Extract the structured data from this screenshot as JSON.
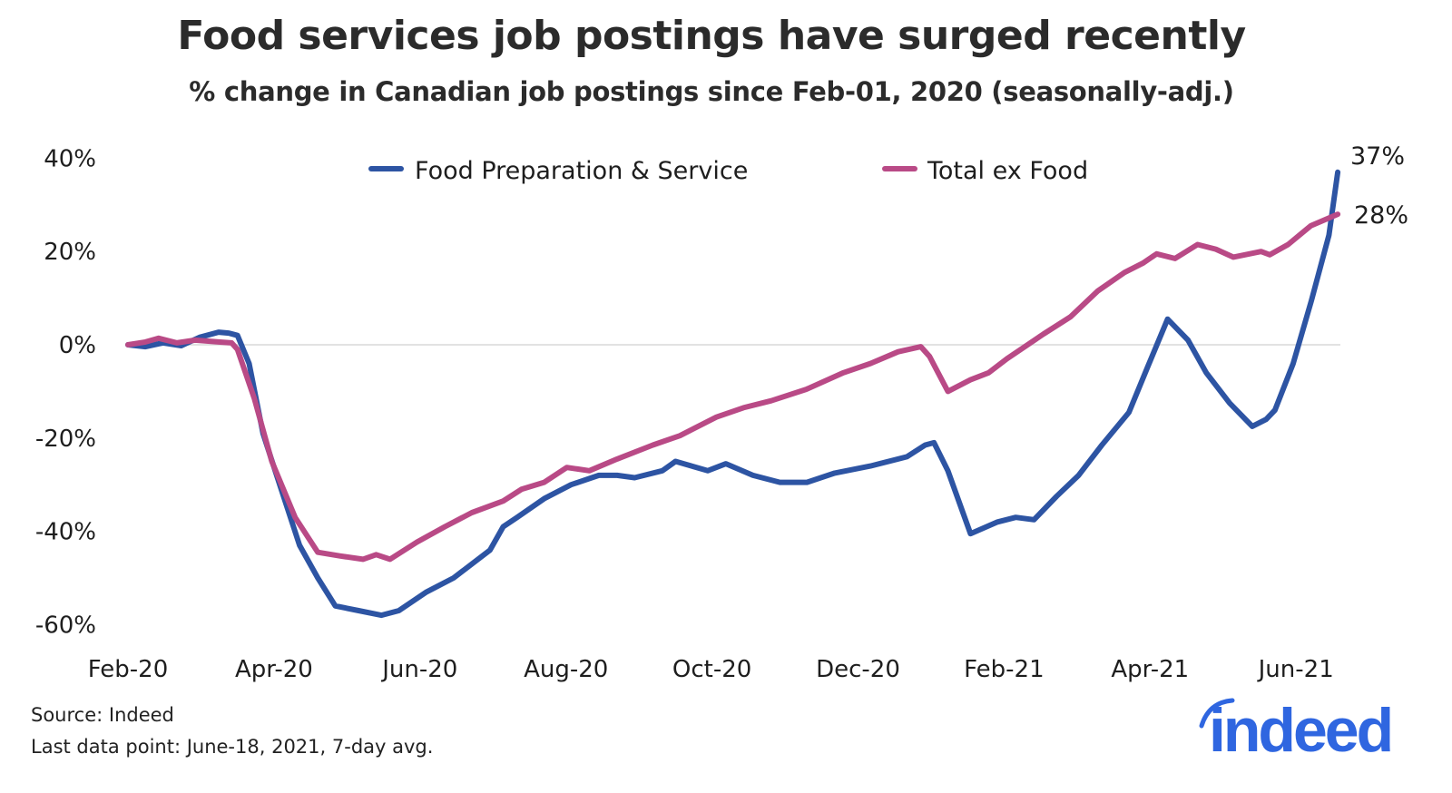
{
  "header": {
    "title": "Food services job postings have surged recently",
    "subtitle": "% change in Canadian job postings since Feb-01, 2020 (seasonally-adj.)"
  },
  "footer": {
    "source": "Source: Indeed",
    "last_point": "Last data point: June-18, 2021, 7-day avg."
  },
  "logo": {
    "text": "indeed",
    "color": "#2f66e0"
  },
  "colors": {
    "food": "#2d54a3",
    "total": "#b94a86",
    "zero_line": "#d9d9d9"
  },
  "chart_data": {
    "type": "line",
    "title": "Food services job postings have surged recently",
    "subtitle": "% change in Canadian job postings since Feb-01, 2020 (seasonally-adj.)",
    "xlabel": "",
    "ylabel": "",
    "x_unit": "months since Feb-01, 2020",
    "xlim": [
      0,
      16.6
    ],
    "ylim": [
      -60,
      40
    ],
    "y_ticks": [
      40,
      20,
      0,
      -20,
      -40,
      -60
    ],
    "y_tick_labels": [
      "40%",
      "20%",
      "0%",
      "-20%",
      "-40%",
      "-60%"
    ],
    "x_ticks": [
      0,
      2,
      4,
      6,
      8,
      10,
      12,
      14,
      16
    ],
    "x_tick_labels": [
      "Feb-20",
      "Apr-20",
      "Jun-20",
      "Aug-20",
      "Oct-20",
      "Dec-20",
      "Feb-21",
      "Apr-21",
      "Jun-21"
    ],
    "grid": "zero line only",
    "legend": {
      "position": "top-center"
    },
    "end_labels": [
      {
        "series": "Food Preparation & Service",
        "text": "37%"
      },
      {
        "series": "Total ex Food",
        "text": "28%"
      }
    ],
    "series": [
      {
        "name": "Food Preparation & Service",
        "color": "#2d54a3",
        "x": [
          0,
          0.24,
          0.48,
          0.73,
          0.98,
          1.24,
          1.38,
          1.5,
          1.66,
          1.85,
          2.1,
          2.35,
          2.6,
          2.84,
          3.16,
          3.47,
          3.71,
          4.09,
          4.46,
          4.96,
          5.14,
          5.33,
          5.7,
          6.07,
          6.45,
          6.7,
          6.94,
          7.32,
          7.5,
          7.94,
          8.19,
          8.56,
          8.93,
          9.3,
          9.68,
          10.17,
          10.67,
          10.92,
          11.04,
          11.23,
          11.54,
          11.91,
          12.16,
          12.41,
          12.72,
          13.02,
          13.34,
          13.71,
          13.96,
          14.24,
          14.52,
          14.77,
          15.09,
          15.4,
          15.59,
          15.71,
          15.96,
          16.21,
          16.45,
          16.57
        ],
        "values": [
          0,
          -0.4,
          0.4,
          -0.2,
          1.6,
          2.7,
          2.5,
          2.0,
          -4,
          -19,
          -31,
          -43,
          -50,
          -56,
          -57,
          -58,
          -57,
          -53,
          -50,
          -44,
          -39,
          -37,
          -33,
          -30,
          -28,
          -28,
          -28.5,
          -27,
          -25,
          -27,
          -25.5,
          -28,
          -29.5,
          -29.5,
          -27.5,
          -26,
          -24,
          -21.5,
          -21,
          -27,
          -40.5,
          -38,
          -37,
          -37.5,
          -32.5,
          -28,
          -21.5,
          -14.5,
          -5,
          5.5,
          1,
          -6,
          -12.5,
          -17.5,
          -16,
          -14,
          -4,
          9.5,
          23.5,
          37
        ]
      },
      {
        "name": "Total ex Food",
        "color": "#b94a86",
        "x": [
          0,
          0.24,
          0.42,
          0.67,
          0.92,
          1.24,
          1.42,
          1.5,
          1.73,
          1.97,
          2.29,
          2.6,
          2.91,
          3.22,
          3.4,
          3.59,
          3.96,
          4.34,
          4.71,
          5.14,
          5.39,
          5.7,
          6.01,
          6.32,
          6.7,
          7.19,
          7.56,
          8.06,
          8.43,
          8.81,
          9.3,
          9.8,
          10.17,
          10.55,
          10.86,
          10.98,
          11.23,
          11.54,
          11.79,
          12.04,
          12.54,
          12.91,
          13.28,
          13.65,
          13.9,
          14.09,
          14.34,
          14.65,
          14.9,
          15.14,
          15.52,
          15.64,
          15.89,
          16.2,
          16.57
        ],
        "values": [
          0,
          0.6,
          1.4,
          0.4,
          1.0,
          0.6,
          0.4,
          -1,
          -11.5,
          -25,
          -37,
          -44.5,
          -45.3,
          -46,
          -45,
          -46,
          -42.3,
          -39,
          -36,
          -33.5,
          -31,
          -29.5,
          -26.3,
          -27,
          -24.5,
          -21.5,
          -19.5,
          -15.5,
          -13.5,
          -12,
          -9.5,
          -6,
          -4,
          -1.5,
          -0.4,
          -2.5,
          -10,
          -7.5,
          -6,
          -3,
          2.3,
          6,
          11.5,
          15.5,
          17.5,
          19.5,
          18.5,
          21.5,
          20.5,
          18.8,
          20,
          19.3,
          21.5,
          25.5,
          28
        ]
      }
    ]
  }
}
